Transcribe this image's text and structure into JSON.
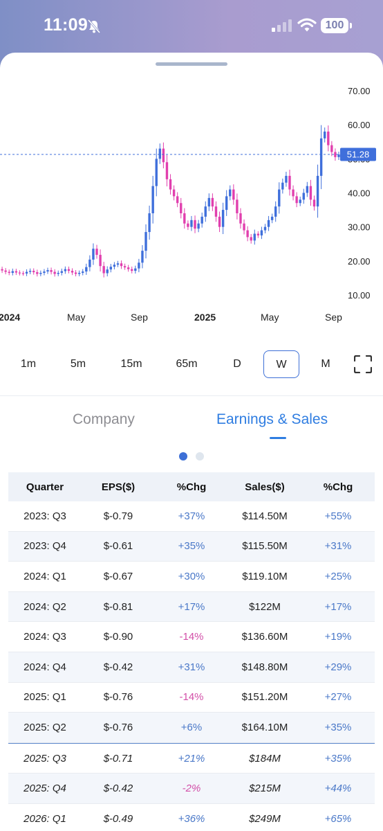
{
  "status_bar": {
    "time": "11:09",
    "battery": "100"
  },
  "chart": {
    "price_axis": [
      "70.00",
      "60.00",
      "50.00",
      "40.00",
      "30.00",
      "20.00",
      "10.00"
    ],
    "current_price": "51.28",
    "time_axis": [
      {
        "label": "2024",
        "bold": true
      },
      {
        "label": "May",
        "bold": false
      },
      {
        "label": "Sep",
        "bold": false
      },
      {
        "label": "2025",
        "bold": true
      },
      {
        "label": "May",
        "bold": false
      },
      {
        "label": "Sep",
        "bold": false
      }
    ],
    "up_color": "#3f6fdb",
    "down_color": "#e13fae",
    "price_line_color": "#3f6fdb"
  },
  "chart_data": {
    "type": "candlestick",
    "interval": "W",
    "ylim": [
      5,
      75
    ],
    "last_price": 51.28,
    "closes": [
      17.6,
      17.2,
      16.8,
      16.5,
      17,
      16.6,
      16.4,
      16.3,
      16.8,
      17.1,
      16.7,
      16.2,
      16.5,
      16.9,
      17.3,
      16.8,
      16.2,
      16.5,
      17,
      17.6,
      17.1,
      16.6,
      16.2,
      16.5,
      16.9,
      18.2,
      20.4,
      23.6,
      21.8,
      18.5,
      16.4,
      17.5,
      18.3,
      18.9,
      19.3,
      18.5,
      18.1,
      17.6,
      17.1,
      17.8,
      19.5,
      23,
      28.5,
      34,
      42,
      50,
      53,
      49,
      44,
      41,
      39,
      37,
      34,
      31,
      30,
      32,
      29.5,
      31,
      33,
      36,
      38.5,
      36,
      33,
      30,
      35,
      39,
      41,
      38,
      34,
      31,
      29,
      27,
      26,
      28,
      27.5,
      29,
      30,
      32,
      33,
      36,
      41,
      43,
      45,
      41,
      39,
      37,
      38,
      40,
      42,
      38,
      36,
      45,
      56,
      58,
      54,
      52,
      50.5,
      51.28
    ]
  },
  "timeframes": [
    {
      "label": "1m",
      "active": false
    },
    {
      "label": "5m",
      "active": false
    },
    {
      "label": "15m",
      "active": false
    },
    {
      "label": "65m",
      "active": false
    },
    {
      "label": "D",
      "active": false
    },
    {
      "label": "W",
      "active": true
    },
    {
      "label": "M",
      "active": false
    }
  ],
  "tabs": {
    "company": "Company",
    "earnings": "Earnings & Sales"
  },
  "table": {
    "headers": [
      "Quarter",
      "EPS($)",
      "%Chg",
      "Sales($)",
      "%Chg"
    ],
    "rows": [
      {
        "quarter": "2023: Q3",
        "eps": "$-0.79",
        "eps_chg": "+37%",
        "sales": "$114.50M",
        "sales_chg": "+55%",
        "forecast": false
      },
      {
        "quarter": "2023: Q4",
        "eps": "$-0.61",
        "eps_chg": "+35%",
        "sales": "$115.50M",
        "sales_chg": "+31%",
        "forecast": false
      },
      {
        "quarter": "2024: Q1",
        "eps": "$-0.67",
        "eps_chg": "+30%",
        "sales": "$119.10M",
        "sales_chg": "+25%",
        "forecast": false
      },
      {
        "quarter": "2024: Q2",
        "eps": "$-0.81",
        "eps_chg": "+17%",
        "sales": "$122M",
        "sales_chg": "+17%",
        "forecast": false
      },
      {
        "quarter": "2024: Q3",
        "eps": "$-0.90",
        "eps_chg": "-14%",
        "sales": "$136.60M",
        "sales_chg": "+19%",
        "forecast": false
      },
      {
        "quarter": "2024: Q4",
        "eps": "$-0.42",
        "eps_chg": "+31%",
        "sales": "$148.80M",
        "sales_chg": "+29%",
        "forecast": false
      },
      {
        "quarter": "2025: Q1",
        "eps": "$-0.76",
        "eps_chg": "-14%",
        "sales": "$151.20M",
        "sales_chg": "+27%",
        "forecast": false
      },
      {
        "quarter": "2025: Q2",
        "eps": "$-0.76",
        "eps_chg": "+6%",
        "sales": "$164.10M",
        "sales_chg": "+35%",
        "forecast": false
      },
      {
        "quarter": "2025: Q3",
        "eps": "$-0.71",
        "eps_chg": "+21%",
        "sales": "$184M",
        "sales_chg": "+35%",
        "forecast": true
      },
      {
        "quarter": "2025: Q4",
        "eps": "$-0.42",
        "eps_chg": "-2%",
        "sales": "$215M",
        "sales_chg": "+44%",
        "forecast": true
      },
      {
        "quarter": "2026: Q1",
        "eps": "$-0.49",
        "eps_chg": "+36%",
        "sales": "$249M",
        "sales_chg": "+65%",
        "forecast": true
      }
    ]
  }
}
